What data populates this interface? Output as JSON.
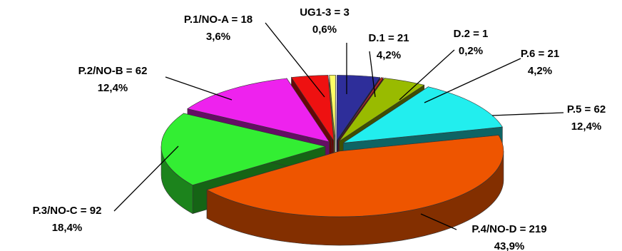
{
  "chart_data": {
    "type": "pie",
    "title": "",
    "slices": [
      {
        "name": "UG1-3",
        "value": 3,
        "percent_label": "0,6%",
        "label": "UG1-3 = 3",
        "color": "#FFFF66"
      },
      {
        "name": "D.1",
        "value": 21,
        "percent_label": "4,2%",
        "label": "D.1 = 21",
        "color": "#2E2E9A"
      },
      {
        "name": "D.2",
        "value": 1,
        "percent_label": "0,2%",
        "label": "D.2 = 1",
        "color": "#CC2222"
      },
      {
        "name": "P.6",
        "value": 21,
        "percent_label": "4,2%",
        "label": "P.6 = 21",
        "color": "#99BB00"
      },
      {
        "name": "P.5",
        "value": 62,
        "percent_label": "12,4%",
        "label": "P.5 = 62",
        "color": "#22EEEE"
      },
      {
        "name": "P.4/NO-D",
        "value": 219,
        "percent_label": "43,9%",
        "label": "P.4/NO-D = 219",
        "color": "#EE5500"
      },
      {
        "name": "P.3/NO-C",
        "value": 92,
        "percent_label": "18,4%",
        "label": "P.3/NO-C = 92",
        "color": "#33EE33"
      },
      {
        "name": "P.2/NO-B",
        "value": 62,
        "percent_label": "12,4%",
        "label": "P.2/NO-B = 62",
        "color": "#EE22EE"
      },
      {
        "name": "P.1/NO-A",
        "value": 18,
        "percent_label": "3,6%",
        "label": "P.1/NO-A = 18",
        "color": "#EE1111"
      }
    ],
    "exploded": true,
    "style": "3d"
  }
}
